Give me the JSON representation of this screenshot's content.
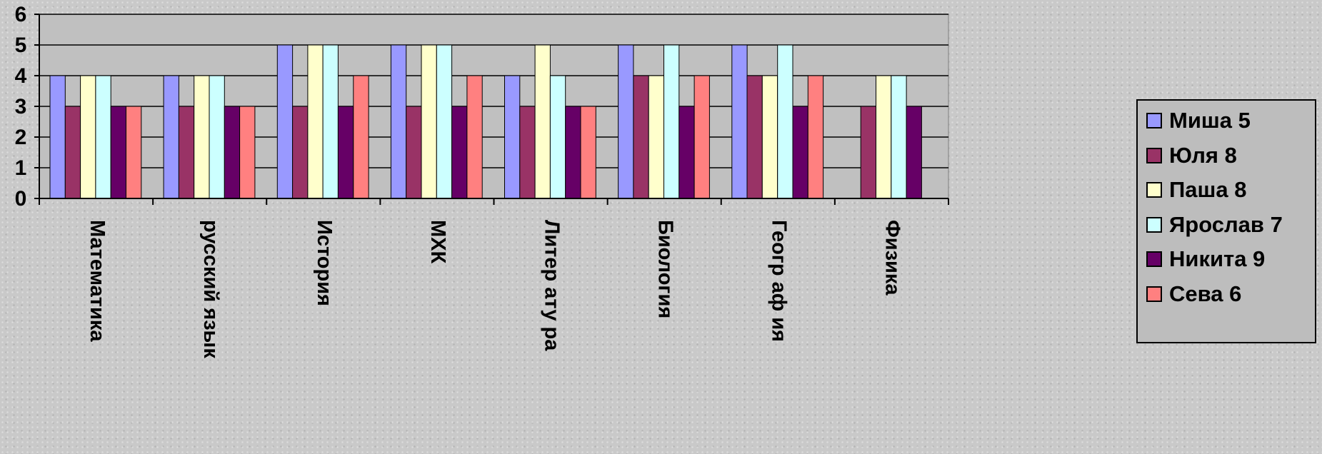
{
  "chart_data": {
    "type": "bar",
    "categories": [
      "Математика",
      "русский язык",
      "История",
      "МХК",
      "Литература",
      "Биология",
      "География",
      "Физика"
    ],
    "category_label_text": [
      "Математика",
      "русский язык",
      "История",
      "МХК",
      "Литер ату ра",
      "Биология",
      "Геогр аф ия",
      "Физика"
    ],
    "series": [
      {
        "name": "Миша 5",
        "color": "#9999ff",
        "values": [
          4,
          4,
          5,
          5,
          4,
          5,
          5,
          null
        ]
      },
      {
        "name": "Юля 8",
        "color": "#993366",
        "values": [
          3,
          3,
          3,
          3,
          3,
          4,
          4,
          3
        ]
      },
      {
        "name": "Паша 8",
        "color": "#ffffcc",
        "values": [
          4,
          4,
          5,
          5,
          5,
          4,
          4,
          4
        ]
      },
      {
        "name": "Ярослав 7",
        "color": "#ccffff",
        "values": [
          4,
          4,
          5,
          5,
          4,
          5,
          5,
          4
        ]
      },
      {
        "name": "Никита 9",
        "color": "#660066",
        "values": [
          3,
          3,
          3,
          3,
          3,
          3,
          3,
          3
        ]
      },
      {
        "name": "Сева 6",
        "color": "#ff8080",
        "values": [
          3,
          3,
          4,
          4,
          3,
          4,
          4,
          null
        ]
      }
    ],
    "y_ticks": [
      "0",
      "1",
      "2",
      "3",
      "4",
      "5",
      "6"
    ],
    "ylim": [
      0,
      6
    ],
    "grid": true,
    "legend_position": "right",
    "plot_background": "#c0c0c0"
  }
}
